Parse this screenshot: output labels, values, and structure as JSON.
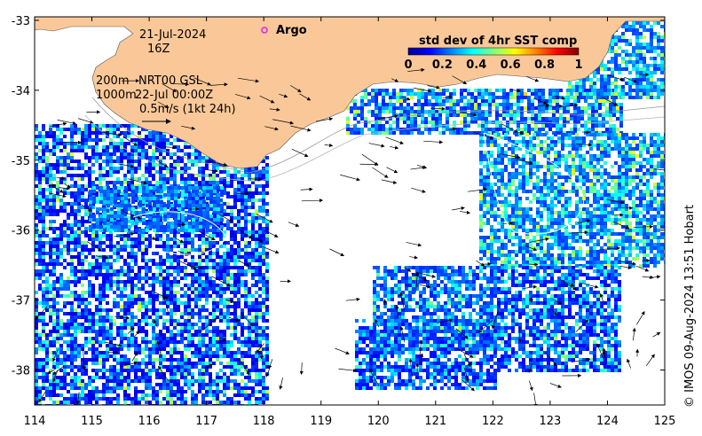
{
  "map": {
    "date": "21-Jul-2024",
    "hour": "16Z",
    "platform_label": "Argo",
    "depth_label": "200m",
    "depth_label_2": "1000m",
    "model_label": "NRT00 GSL",
    "model_time": "22-Jul 00:00Z",
    "scale_label": "0.5m/s (1kt 24h)",
    "colorbar": {
      "title": "std dev of 4hr SST comp",
      "ticks": [
        "0",
        "0.2",
        "0.4",
        "0.6",
        "0.8",
        "1"
      ],
      "range": [
        0,
        1
      ]
    },
    "credit": "© IMOS 09-Aug-2024 13:51 Hobart",
    "x_ticks": [
      "114",
      "115",
      "116",
      "117",
      "118",
      "119",
      "120",
      "121",
      "122",
      "123",
      "124",
      "125"
    ],
    "y_ticks": [
      "-33",
      "-34",
      "-35",
      "-36",
      "-37",
      "-38"
    ],
    "lon_range": [
      114,
      125
    ],
    "lat_range": [
      -38.5,
      -32.95
    ],
    "colors": {
      "land": "#FAC898",
      "ocean_nodata": "#FFFFFF",
      "argo_marker": "#E020E0"
    }
  }
}
